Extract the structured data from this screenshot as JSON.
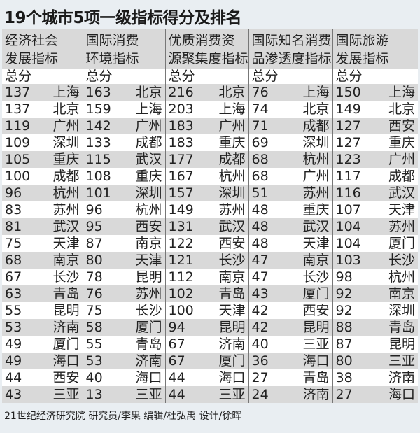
{
  "title": "19个城市5项一级指标得分及排名",
  "columns": [
    {
      "header": [
        "经济社会",
        "发展指标"
      ],
      "sub": "总分",
      "rows": [
        [
          "137",
          "上海"
        ],
        [
          "137",
          "北京"
        ],
        [
          "119",
          "广州"
        ],
        [
          "109",
          "深圳"
        ],
        [
          "105",
          "重庆"
        ],
        [
          "100",
          "成都"
        ],
        [
          "96",
          "杭州"
        ],
        [
          "83",
          "苏州"
        ],
        [
          "81",
          "武汉"
        ],
        [
          "75",
          "天津"
        ],
        [
          "68",
          "南京"
        ],
        [
          "67",
          "长沙"
        ],
        [
          "63",
          "青岛"
        ],
        [
          "55",
          "昆明"
        ],
        [
          "53",
          "济南"
        ],
        [
          "49",
          "厦门"
        ],
        [
          "49",
          "海口"
        ],
        [
          "44",
          "西安"
        ],
        [
          "43",
          "三亚"
        ]
      ]
    },
    {
      "header": [
        "国际消费",
        "环境指标"
      ],
      "sub": "总分",
      "rows": [
        [
          "163",
          "北京"
        ],
        [
          "159",
          "上海"
        ],
        [
          "142",
          "广州"
        ],
        [
          "133",
          "成都"
        ],
        [
          "115",
          "武汉"
        ],
        [
          "108",
          "重庆"
        ],
        [
          "101",
          "深圳"
        ],
        [
          "96",
          "杭州"
        ],
        [
          "95",
          "西安"
        ],
        [
          "87",
          "南京"
        ],
        [
          "80",
          "天津"
        ],
        [
          "78",
          "昆明"
        ],
        [
          "76",
          "苏州"
        ],
        [
          "75",
          "长沙"
        ],
        [
          "58",
          "厦门"
        ],
        [
          "55",
          "青岛"
        ],
        [
          "53",
          "济南"
        ],
        [
          "40",
          "海口"
        ],
        [
          "13",
          "三亚"
        ]
      ]
    },
    {
      "header": [
        "优质消费资",
        "源聚集度指标"
      ],
      "sub": "总分",
      "rows": [
        [
          "216",
          "北京"
        ],
        [
          "203",
          "上海"
        ],
        [
          "183",
          "广州"
        ],
        [
          "183",
          "重庆"
        ],
        [
          "177",
          "成都"
        ],
        [
          "167",
          "杭州"
        ],
        [
          "157",
          "深圳"
        ],
        [
          "149",
          "苏州"
        ],
        [
          "131",
          "武汉"
        ],
        [
          "122",
          "西安"
        ],
        [
          "121",
          "长沙"
        ],
        [
          "112",
          "南京"
        ],
        [
          "102",
          "青岛"
        ],
        [
          "100",
          "天津"
        ],
        [
          "94",
          "昆明"
        ],
        [
          "67",
          "济南"
        ],
        [
          "67",
          "厦门"
        ],
        [
          "44",
          "海口"
        ],
        [
          "44",
          "三亚"
        ]
      ]
    },
    {
      "header": [
        "国际知名消费",
        "品渗透度指标"
      ],
      "sub": "总分",
      "rows": [
        [
          "76",
          "上海"
        ],
        [
          "74",
          "北京"
        ],
        [
          "71",
          "成都"
        ],
        [
          "69",
          "深圳"
        ],
        [
          "68",
          "杭州"
        ],
        [
          "68",
          "广州"
        ],
        [
          "51",
          "苏州"
        ],
        [
          "48",
          "重庆"
        ],
        [
          "48",
          "武汉"
        ],
        [
          "48",
          "天津"
        ],
        [
          "47",
          "南京"
        ],
        [
          "47",
          "长沙"
        ],
        [
          "43",
          "厦门"
        ],
        [
          "42",
          "西安"
        ],
        [
          "42",
          "昆明"
        ],
        [
          "40",
          "三亚"
        ],
        [
          "36",
          "海口"
        ],
        [
          "27",
          "青岛"
        ],
        [
          "24",
          "济南"
        ]
      ]
    },
    {
      "header": [
        "国际旅游",
        "发展指标"
      ],
      "sub": "总分",
      "rows": [
        [
          "150",
          "上海"
        ],
        [
          "149",
          "北京"
        ],
        [
          "127",
          "西安"
        ],
        [
          "127",
          "重庆"
        ],
        [
          "123",
          "广州"
        ],
        [
          "117",
          "成都"
        ],
        [
          "116",
          "武汉"
        ],
        [
          "107",
          "天津"
        ],
        [
          "104",
          "苏州"
        ],
        [
          "104",
          "厦门"
        ],
        [
          "103",
          "长沙"
        ],
        [
          "98",
          "杭州"
        ],
        [
          "92",
          "南京"
        ],
        [
          "92",
          "深圳"
        ],
        [
          "88",
          "青岛"
        ],
        [
          "87",
          "昆明"
        ],
        [
          "80",
          "三亚"
        ],
        [
          "38",
          "济南"
        ],
        [
          "27",
          "海口"
        ]
      ]
    }
  ],
  "footer": "21世纪经济研究院 研究员/李果  编辑/杜弘禹  设计/徐晖",
  "colors": {
    "background": "#e9eef2",
    "stripe": "#d9d9d9",
    "header_bg": "#d9d9d9"
  }
}
